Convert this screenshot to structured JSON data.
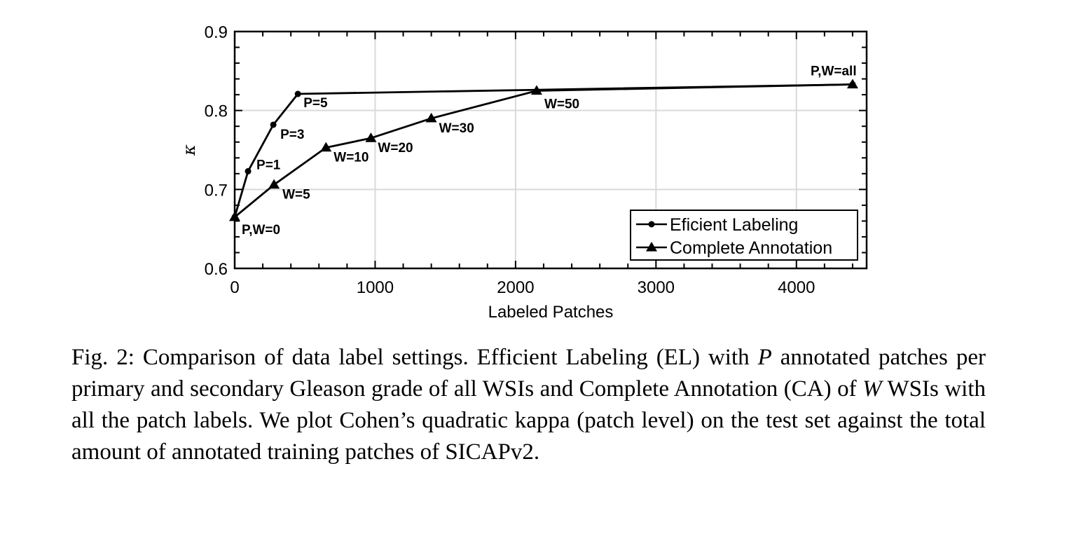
{
  "chart_data": {
    "type": "line",
    "title": "",
    "xlabel": "Labeled Patches",
    "ylabel": "κ",
    "xlim": [
      0,
      4500
    ],
    "ylim": [
      0.6,
      0.9
    ],
    "xticks": [
      0,
      1000,
      2000,
      3000,
      4000
    ],
    "xtick_labels": [
      "0",
      "1000",
      "2000",
      "3000",
      "4000"
    ],
    "yticks": [
      0.6,
      0.7,
      0.8,
      0.9
    ],
    "ytick_labels": [
      "0.6",
      "0.7",
      "0.8",
      "0.9"
    ],
    "grid": true,
    "legend_position": "bottom-right",
    "series": [
      {
        "name": "Eficient Labeling",
        "marker": "circle",
        "points": [
          {
            "x": 0,
            "y": 0.665,
            "label": ""
          },
          {
            "x": 95,
            "y": 0.723,
            "label": "P=1"
          },
          {
            "x": 275,
            "y": 0.782,
            "label": "P=3"
          },
          {
            "x": 450,
            "y": 0.821,
            "label": "P=5"
          },
          {
            "x": 4400,
            "y": 0.833,
            "label": ""
          }
        ]
      },
      {
        "name": "Complete Annotation",
        "marker": "triangle",
        "points": [
          {
            "x": 0,
            "y": 0.665,
            "label": "P,W=0"
          },
          {
            "x": 280,
            "y": 0.706,
            "label": "W=5"
          },
          {
            "x": 650,
            "y": 0.753,
            "label": "W=10"
          },
          {
            "x": 970,
            "y": 0.765,
            "label": "W=20"
          },
          {
            "x": 1400,
            "y": 0.79,
            "label": "W=30"
          },
          {
            "x": 2150,
            "y": 0.825,
            "label": "W=50"
          },
          {
            "x": 4400,
            "y": 0.833,
            "label": "P,W=all"
          }
        ]
      }
    ]
  },
  "caption": {
    "t1": "Fig. 2: Comparison of data label settings. Efficient Labeling (EL) with ",
    "v1": "P",
    "t2": " annotated patches per primary and secondary Gleason grade of all WSIs and Complete Annotation (CA) of ",
    "v2": "W",
    "t3": " WSIs with all the patch labels. We plot Cohen’s quadratic kappa (patch level) on the test set against the total amount of annotated training patches of SICAPv2."
  }
}
